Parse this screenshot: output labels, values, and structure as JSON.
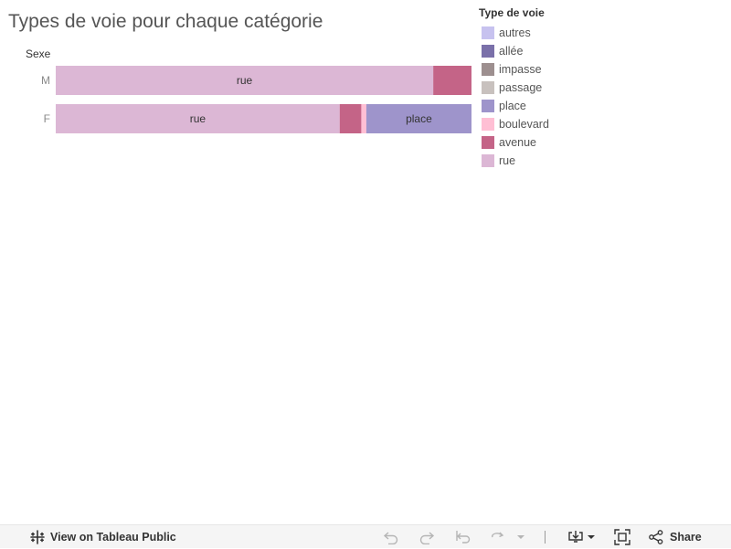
{
  "title": "Types de voie pour chaque catégorie",
  "chart_data": {
    "type": "bar",
    "orientation": "horizontal",
    "stacked": true,
    "normalized": true,
    "row_axis_title": "Sexe",
    "categories": [
      "M",
      "F"
    ],
    "stack_order": [
      "rue",
      "avenue",
      "boulevard",
      "place",
      "passage",
      "impasse",
      "allée",
      "autres"
    ],
    "series": [
      {
        "name": "rue",
        "color": "#dcb7d5",
        "values": [
          0.908,
          0.683
        ]
      },
      {
        "name": "avenue",
        "color": "#c46487",
        "values": [
          0.092,
          0.052
        ]
      },
      {
        "name": "boulevard",
        "color": "#ffbfd4",
        "values": [
          0.0,
          0.012
        ]
      },
      {
        "name": "place",
        "color": "#9e94cb",
        "values": [
          0.0,
          0.253
        ]
      },
      {
        "name": "passage",
        "color": "#c8c1be",
        "values": [
          0.0,
          0.0
        ]
      },
      {
        "name": "impasse",
        "color": "#9d8f8f",
        "values": [
          0.0,
          0.0
        ]
      },
      {
        "name": "allée",
        "color": "#7a70a9",
        "values": [
          0.0,
          0.0
        ]
      },
      {
        "name": "autres",
        "color": "#c7c2ef",
        "values": [
          0.0,
          0.0
        ]
      }
    ],
    "mark_labels": {
      "M": [
        "rue"
      ],
      "F": [
        "rue",
        "place"
      ]
    },
    "legend": {
      "title": "Type de voie",
      "position": "right",
      "entries": [
        {
          "label": "autres",
          "color": "#c7c2ef"
        },
        {
          "label": "allée",
          "color": "#7a70a9"
        },
        {
          "label": "impasse",
          "color": "#9d8f8f"
        },
        {
          "label": "passage",
          "color": "#c8c1be"
        },
        {
          "label": "place",
          "color": "#9e94cb"
        },
        {
          "label": "boulevard",
          "color": "#ffbfd4"
        },
        {
          "label": "avenue",
          "color": "#c46487"
        },
        {
          "label": "rue",
          "color": "#dcb7d5"
        }
      ]
    },
    "grid": false
  },
  "toolbar": {
    "view_label": "View on Tableau Public",
    "share_label": "Share",
    "icons": {
      "tableau": "tableau-logo-icon",
      "undo": "undo-icon",
      "redo": "redo-icon",
      "revert": "revert-icon",
      "refresh": "refresh-icon",
      "refresh_menu": "chevron-down-icon",
      "download": "download-icon",
      "download_menu": "chevron-down-icon",
      "fullscreen": "fullscreen-icon",
      "share": "share-icon"
    }
  }
}
